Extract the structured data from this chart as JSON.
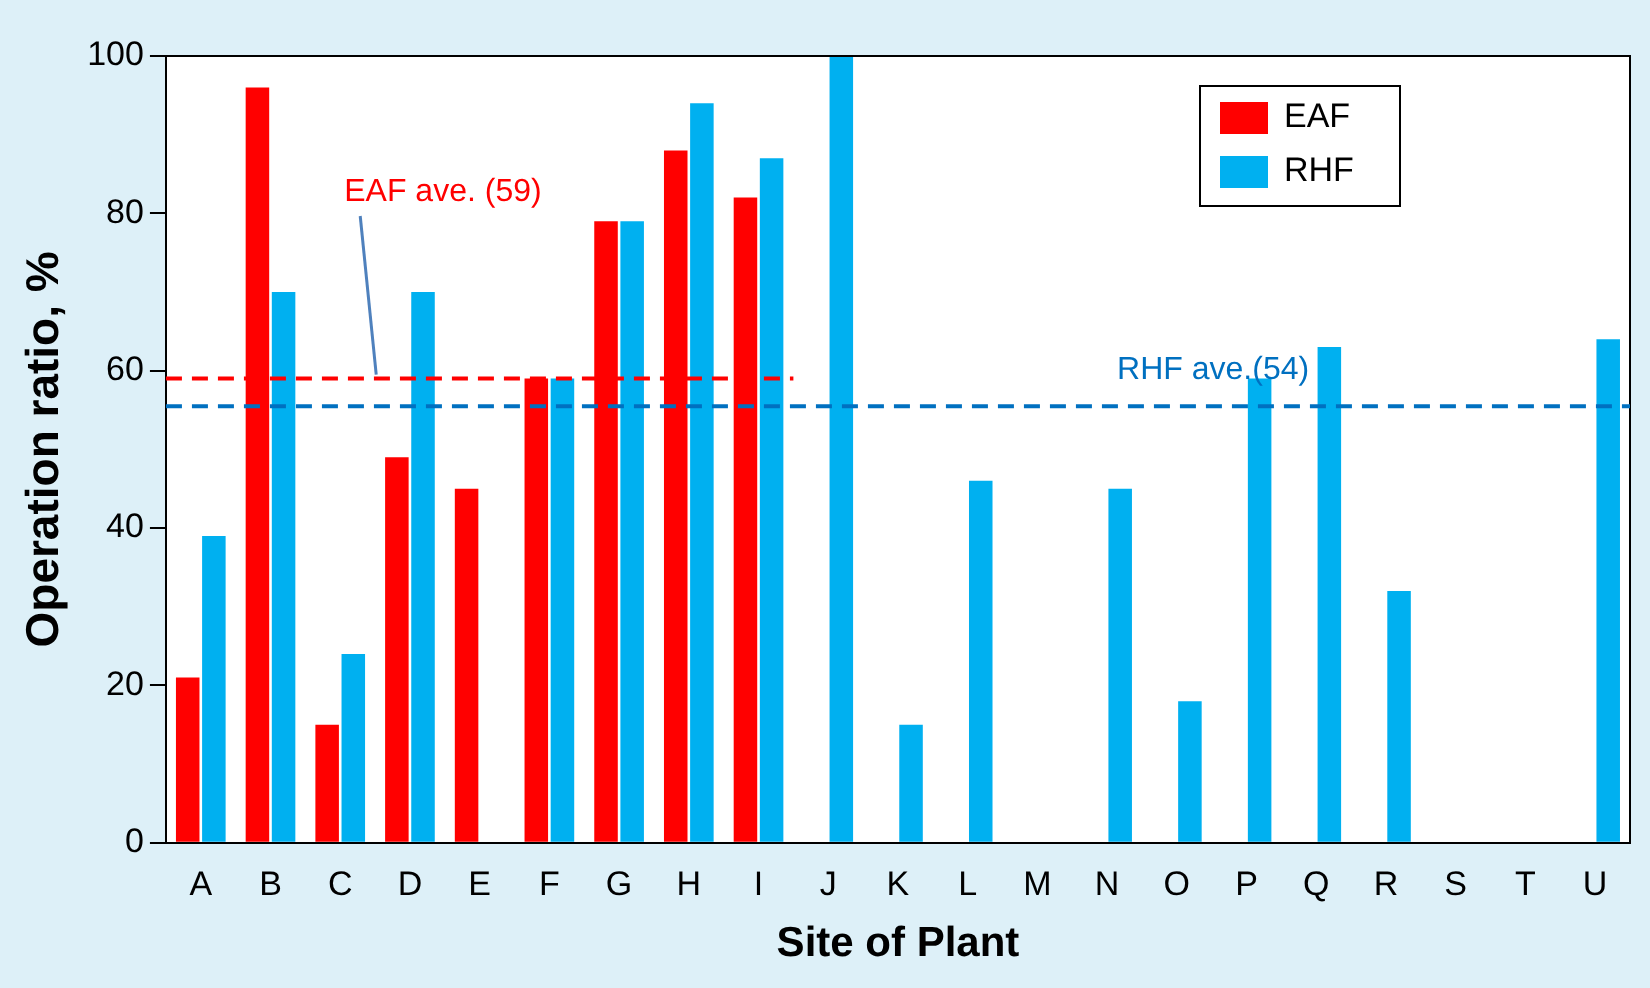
{
  "chart_data": {
    "type": "bar",
    "xlabel": "Site of Plant",
    "ylabel": "Operation ratio, %",
    "categories": [
      "A",
      "B",
      "C",
      "D",
      "E",
      "F",
      "G",
      "H",
      "I",
      "J",
      "K",
      "L",
      "M",
      "N",
      "O",
      "P",
      "Q",
      "R",
      "S",
      "T",
      "U"
    ],
    "series": [
      {
        "name": "EAF",
        "color": "#ff0000",
        "values": [
          21,
          96,
          15,
          49,
          45,
          59,
          79,
          88,
          82,
          null,
          null,
          null,
          null,
          null,
          null,
          null,
          null,
          null,
          null,
          null,
          null
        ]
      },
      {
        "name": "RHF",
        "color": "#00b0f0",
        "values": [
          39,
          70,
          24,
          70,
          null,
          59,
          79,
          94,
          87,
          100,
          15,
          46,
          null,
          45,
          18,
          59,
          63,
          32,
          null,
          null,
          64
        ]
      }
    ],
    "ylim": [
      0,
      100
    ],
    "yticks": [
      0,
      20,
      40,
      60,
      80,
      100
    ],
    "grid": false,
    "legend": "top right",
    "ref_lines": [
      {
        "axis": "y",
        "value": 59,
        "label": "EAF ave. (59)",
        "color": "#ff0000",
        "line_style": "dashed"
      },
      {
        "axis": "y",
        "value": 55.5,
        "label": "RHF ave.(54)",
        "color": "#0070c0",
        "line_style": "dashed"
      }
    ]
  }
}
